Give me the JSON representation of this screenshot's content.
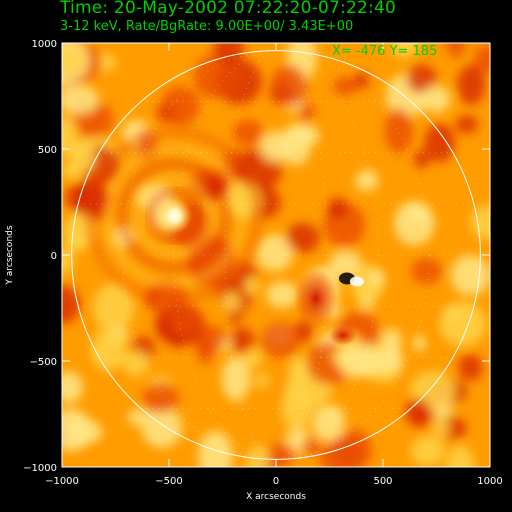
{
  "header": {
    "time_line": "Time: 20-May-2002 07:22:20-07:22:40",
    "info_line": "3-12 keV, Rate/BgRate:  9.00E+00/  3.43E+00"
  },
  "cursor_readout": "X= -476 Y=  185",
  "colors": {
    "background": "#000000",
    "header_text": "#00d000",
    "axes": "#ffffff",
    "colormap": [
      "#000000",
      "#c81400",
      "#e84800",
      "#ff9c00",
      "#ffd040",
      "#ffffff"
    ]
  },
  "chart_data": {
    "type": "heatmap",
    "title": "Time: 20-May-2002 07:22:20-07:22:40",
    "subtitle": "3-12 keV, Rate/BgRate:  9.00E+00/  3.43E+00",
    "xlabel": "X arcseconds",
    "ylabel": "Y arcseconds",
    "xlim": [
      -1000,
      1000
    ],
    "ylim": [
      -1000,
      1000
    ],
    "x_ticks": [
      -1000,
      -500,
      0,
      500,
      1000
    ],
    "y_ticks": [
      -1000,
      -500,
      0,
      500,
      1000
    ],
    "x_tick_labels": [
      "−1000",
      "−500",
      "0",
      "500",
      "1000"
    ],
    "y_tick_labels": [
      "1000",
      "500",
      "0",
      "−500",
      "−1000"
    ],
    "solar_limb_radius": 955,
    "grid": "dotted heliographic grid inside solar disk",
    "sources": [
      {
        "x": -476,
        "y": 185,
        "kind": "bright source"
      },
      {
        "x": 350,
        "y": -120,
        "kind": "dark/bright dipole artifact"
      }
    ]
  }
}
